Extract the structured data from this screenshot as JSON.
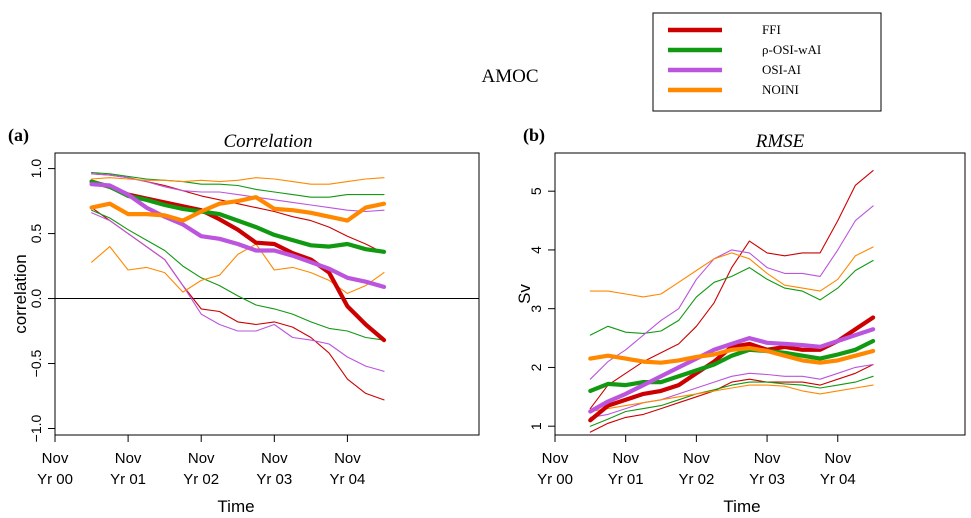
{
  "figure_title": "AMOC",
  "legend": [
    {
      "label": "FFI",
      "color": "#cc0000"
    },
    {
      "label": "ρ-OSI-wAI",
      "color": "#119911"
    },
    {
      "label": "OSI-AI",
      "color": "#bb55dd"
    },
    {
      "label": "NOINI",
      "color": "#ff8800"
    }
  ],
  "chart_data": [
    {
      "type": "line",
      "panel_label": "(a)",
      "title": "Correlation",
      "xlabel": "Time",
      "ylabel": "correlation",
      "xlim": [
        0,
        5.8
      ],
      "ylim": [
        -1.05,
        1.12
      ],
      "y_ticks": [
        -1.0,
        -0.5,
        0.0,
        0.5,
        1.0
      ],
      "y_tick_labels": [
        "−1.0",
        "−0.5",
        "0.0",
        "0.5",
        "1.0"
      ],
      "x_ticks": [
        0,
        1,
        2,
        3,
        4
      ],
      "x_tick_labels": [
        [
          "Nov",
          "Yr 00"
        ],
        [
          "Nov",
          "Yr 01"
        ],
        [
          "Nov",
          "Yr 02"
        ],
        [
          "Nov",
          "Yr 03"
        ],
        [
          "Nov",
          "Yr 04"
        ]
      ],
      "reference_line_y": 0,
      "x": [
        0.5,
        0.75,
        1.0,
        1.25,
        1.5,
        1.75,
        2.0,
        2.25,
        2.5,
        2.75,
        3.0,
        3.25,
        3.5,
        3.75,
        4.0,
        4.25,
        4.5
      ],
      "series": [
        {
          "name": "FFI",
          "style": "mean",
          "color": "#cc0000",
          "values": [
            0.9,
            0.86,
            0.8,
            0.77,
            0.74,
            0.71,
            0.68,
            0.61,
            0.53,
            0.43,
            0.42,
            0.35,
            0.3,
            0.2,
            -0.06,
            -0.2,
            -0.32
          ]
        },
        {
          "name": "FFI",
          "style": "bound",
          "color": "#cc0000",
          "values": [
            0.96,
            0.95,
            0.93,
            0.9,
            0.87,
            0.83,
            0.79,
            0.76,
            0.73,
            0.7,
            0.67,
            0.63,
            0.6,
            0.55,
            0.48,
            0.42,
            0.35
          ]
        },
        {
          "name": "FFI",
          "style": "bound",
          "color": "#cc0000",
          "values": [
            0.7,
            0.6,
            0.5,
            0.4,
            0.3,
            0.1,
            -0.08,
            -0.1,
            -0.18,
            -0.2,
            -0.18,
            -0.22,
            -0.3,
            -0.42,
            -0.62,
            -0.73,
            -0.78
          ]
        },
        {
          "name": "ρ-OSI-wAI",
          "style": "mean",
          "color": "#119911",
          "values": [
            0.9,
            0.86,
            0.79,
            0.76,
            0.72,
            0.69,
            0.67,
            0.65,
            0.6,
            0.55,
            0.49,
            0.45,
            0.41,
            0.4,
            0.42,
            0.38,
            0.36
          ]
        },
        {
          "name": "ρ-OSI-wAI",
          "style": "bound",
          "color": "#119911",
          "values": [
            0.97,
            0.96,
            0.94,
            0.92,
            0.91,
            0.9,
            0.88,
            0.88,
            0.87,
            0.84,
            0.82,
            0.8,
            0.78,
            0.78,
            0.8,
            0.8,
            0.8
          ]
        },
        {
          "name": "ρ-OSI-wAI",
          "style": "bound",
          "color": "#119911",
          "values": [
            0.68,
            0.62,
            0.53,
            0.45,
            0.37,
            0.25,
            0.16,
            0.1,
            0.02,
            -0.05,
            -0.08,
            -0.12,
            -0.18,
            -0.23,
            -0.25,
            -0.3,
            -0.32
          ]
        },
        {
          "name": "OSI-AI",
          "style": "mean",
          "color": "#bb55dd",
          "values": [
            0.88,
            0.87,
            0.8,
            0.7,
            0.63,
            0.57,
            0.48,
            0.46,
            0.42,
            0.37,
            0.37,
            0.33,
            0.28,
            0.23,
            0.16,
            0.13,
            0.09
          ]
        },
        {
          "name": "OSI-AI",
          "style": "bound",
          "color": "#bb55dd",
          "values": [
            0.96,
            0.95,
            0.93,
            0.9,
            0.86,
            0.83,
            0.82,
            0.82,
            0.8,
            0.78,
            0.76,
            0.74,
            0.72,
            0.7,
            0.68,
            0.67,
            0.68
          ]
        },
        {
          "name": "OSI-AI",
          "style": "bound",
          "color": "#bb55dd",
          "values": [
            0.66,
            0.6,
            0.5,
            0.4,
            0.3,
            0.1,
            -0.12,
            -0.2,
            -0.25,
            -0.25,
            -0.2,
            -0.3,
            -0.32,
            -0.35,
            -0.45,
            -0.52,
            -0.56
          ]
        },
        {
          "name": "NOINI",
          "style": "mean",
          "color": "#ff8800",
          "values": [
            0.7,
            0.73,
            0.65,
            0.65,
            0.64,
            0.6,
            0.67,
            0.73,
            0.75,
            0.78,
            0.69,
            0.68,
            0.66,
            0.63,
            0.6,
            0.7,
            0.73
          ]
        },
        {
          "name": "NOINI",
          "style": "bound",
          "color": "#ff8800",
          "values": [
            0.92,
            0.93,
            0.92,
            0.91,
            0.91,
            0.9,
            0.91,
            0.9,
            0.91,
            0.93,
            0.92,
            0.9,
            0.88,
            0.88,
            0.9,
            0.92,
            0.93
          ]
        },
        {
          "name": "NOINI",
          "style": "bound",
          "color": "#ff8800",
          "values": [
            0.28,
            0.4,
            0.22,
            0.24,
            0.2,
            0.05,
            0.14,
            0.18,
            0.34,
            0.42,
            0.22,
            0.24,
            0.2,
            0.14,
            0.04,
            0.1,
            0.2
          ]
        }
      ]
    },
    {
      "type": "line",
      "panel_label": "(b)",
      "title": "RMSE",
      "xlabel": "Time",
      "ylabel": "Sv",
      "xlim": [
        0,
        5.8
      ],
      "ylim": [
        0.85,
        5.65
      ],
      "y_ticks": [
        1,
        2,
        3,
        4,
        5
      ],
      "y_tick_labels": [
        "1",
        "2",
        "3",
        "4",
        "5"
      ],
      "x_ticks": [
        0,
        1,
        2,
        3,
        4
      ],
      "x_tick_labels": [
        [
          "Nov",
          "Yr 00"
        ],
        [
          "Nov",
          "Yr 01"
        ],
        [
          "Nov",
          "Yr 02"
        ],
        [
          "Nov",
          "Yr 03"
        ],
        [
          "Nov",
          "Yr 04"
        ]
      ],
      "x": [
        0.5,
        0.75,
        1.0,
        1.25,
        1.5,
        1.75,
        2.0,
        2.25,
        2.5,
        2.75,
        3.0,
        3.25,
        3.5,
        3.75,
        4.0,
        4.25,
        4.5
      ],
      "series": [
        {
          "name": "FFI",
          "style": "mean",
          "color": "#cc0000",
          "values": [
            1.1,
            1.35,
            1.45,
            1.55,
            1.6,
            1.7,
            1.9,
            2.1,
            2.35,
            2.4,
            2.3,
            2.35,
            2.3,
            2.3,
            2.45,
            2.65,
            2.85
          ]
        },
        {
          "name": "FFI",
          "style": "bound",
          "color": "#cc0000",
          "values": [
            1.3,
            1.7,
            1.9,
            2.1,
            2.25,
            2.4,
            2.7,
            3.1,
            3.7,
            4.15,
            3.95,
            3.9,
            3.95,
            3.95,
            4.5,
            5.1,
            5.35
          ]
        },
        {
          "name": "FFI",
          "style": "bound",
          "color": "#cc0000",
          "values": [
            0.9,
            1.05,
            1.15,
            1.2,
            1.3,
            1.4,
            1.5,
            1.6,
            1.75,
            1.8,
            1.75,
            1.75,
            1.75,
            1.7,
            1.8,
            1.9,
            2.05
          ]
        },
        {
          "name": "ρ-OSI-wAI",
          "style": "mean",
          "color": "#119911",
          "values": [
            1.6,
            1.72,
            1.7,
            1.75,
            1.75,
            1.85,
            1.95,
            2.05,
            2.2,
            2.3,
            2.28,
            2.25,
            2.2,
            2.15,
            2.22,
            2.3,
            2.45
          ]
        },
        {
          "name": "ρ-OSI-wAI",
          "style": "bound",
          "color": "#119911",
          "values": [
            2.55,
            2.7,
            2.6,
            2.58,
            2.62,
            2.8,
            3.2,
            3.45,
            3.55,
            3.7,
            3.5,
            3.35,
            3.3,
            3.15,
            3.35,
            3.65,
            3.82
          ]
        },
        {
          "name": "ρ-OSI-wAI",
          "style": "bound",
          "color": "#119911",
          "values": [
            1.0,
            1.12,
            1.25,
            1.3,
            1.35,
            1.45,
            1.55,
            1.62,
            1.7,
            1.75,
            1.75,
            1.72,
            1.7,
            1.65,
            1.7,
            1.75,
            1.85
          ]
        },
        {
          "name": "OSI-AI",
          "style": "mean",
          "color": "#bb55dd",
          "values": [
            1.25,
            1.42,
            1.55,
            1.7,
            1.85,
            2.0,
            2.15,
            2.3,
            2.4,
            2.5,
            2.42,
            2.4,
            2.38,
            2.35,
            2.45,
            2.55,
            2.65
          ]
        },
        {
          "name": "OSI-AI",
          "style": "bound",
          "color": "#bb55dd",
          "values": [
            1.8,
            2.1,
            2.3,
            2.55,
            2.8,
            3.0,
            3.5,
            3.85,
            4.0,
            3.95,
            3.7,
            3.6,
            3.6,
            3.55,
            4.0,
            4.5,
            4.75
          ]
        },
        {
          "name": "OSI-AI",
          "style": "bound",
          "color": "#bb55dd",
          "values": [
            1.15,
            1.2,
            1.3,
            1.4,
            1.45,
            1.55,
            1.65,
            1.75,
            1.85,
            1.9,
            1.88,
            1.85,
            1.85,
            1.8,
            1.9,
            2.0,
            2.05
          ]
        },
        {
          "name": "NOINI",
          "style": "mean",
          "color": "#ff8800",
          "values": [
            2.15,
            2.2,
            2.15,
            2.1,
            2.08,
            2.12,
            2.18,
            2.22,
            2.3,
            2.33,
            2.28,
            2.2,
            2.12,
            2.08,
            2.12,
            2.2,
            2.28
          ]
        },
        {
          "name": "NOINI",
          "style": "bound",
          "color": "#ff8800",
          "values": [
            3.3,
            3.3,
            3.25,
            3.2,
            3.25,
            3.45,
            3.65,
            3.85,
            3.95,
            3.85,
            3.6,
            3.4,
            3.35,
            3.3,
            3.5,
            3.9,
            4.05
          ]
        },
        {
          "name": "NOINI",
          "style": "bound",
          "color": "#ff8800",
          "values": [
            1.25,
            1.3,
            1.35,
            1.4,
            1.45,
            1.5,
            1.55,
            1.6,
            1.65,
            1.7,
            1.7,
            1.68,
            1.6,
            1.55,
            1.6,
            1.65,
            1.7
          ]
        }
      ]
    }
  ]
}
